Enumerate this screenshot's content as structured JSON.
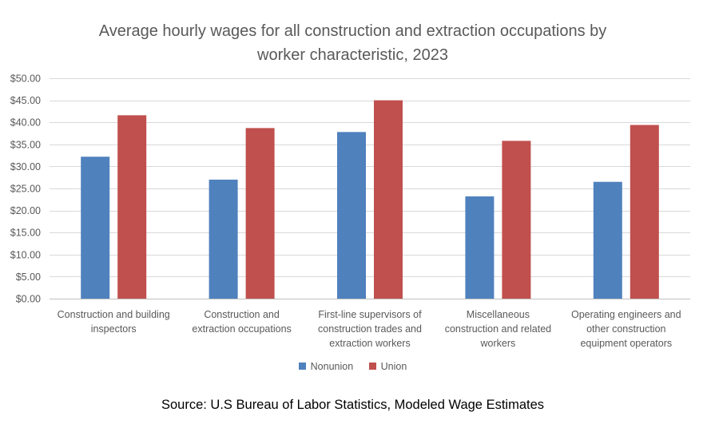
{
  "chart_data": {
    "type": "bar",
    "title_lines": [
      "Average hourly wages for all construction and extraction occupations by",
      "worker characteristic, 2023"
    ],
    "categories": [
      [
        "Construction and building",
        "inspectors"
      ],
      [
        "Construction and",
        "extraction occupations"
      ],
      [
        "First-line supervisors of",
        "construction trades and",
        "extraction workers"
      ],
      [
        "Miscellaneous",
        "construction and related",
        "workers"
      ],
      [
        "Operating engineers and",
        "other construction",
        "equipment operators"
      ]
    ],
    "series": [
      {
        "name": "Nonunion",
        "color": "#4f81bd",
        "values": [
          32.2,
          27.0,
          37.8,
          23.2,
          26.5
        ]
      },
      {
        "name": "Union",
        "color": "#c0504d",
        "values": [
          41.6,
          38.7,
          45.0,
          35.8,
          39.4
        ]
      }
    ],
    "ylim": [
      0,
      50
    ],
    "yticks": [
      0,
      5,
      10,
      15,
      20,
      25,
      30,
      35,
      40,
      45,
      50
    ],
    "ytick_labels": [
      "$0.00",
      "$5.00",
      "$10.00",
      "$15.00",
      "$20.00",
      "$25.00",
      "$30.00",
      "$35.00",
      "$40.00",
      "$45.00",
      "$50.00"
    ],
    "grid": true,
    "legend_position": "bottom"
  },
  "source": "Source: U.S Bureau of Labor Statistics, Modeled Wage Estimates"
}
